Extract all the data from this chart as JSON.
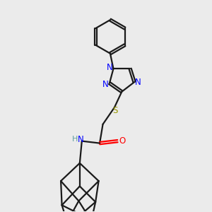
{
  "background_color": "#ebebeb",
  "bond_color": "#1a1a1a",
  "N_color": "#0000ff",
  "O_color": "#ff0000",
  "S_color": "#999900",
  "H_color": "#5f9ea0",
  "line_width": 1.6,
  "figsize": [
    3.0,
    3.0
  ],
  "dpi": 100,
  "xlim": [
    0,
    10
  ],
  "ylim": [
    0,
    10
  ]
}
